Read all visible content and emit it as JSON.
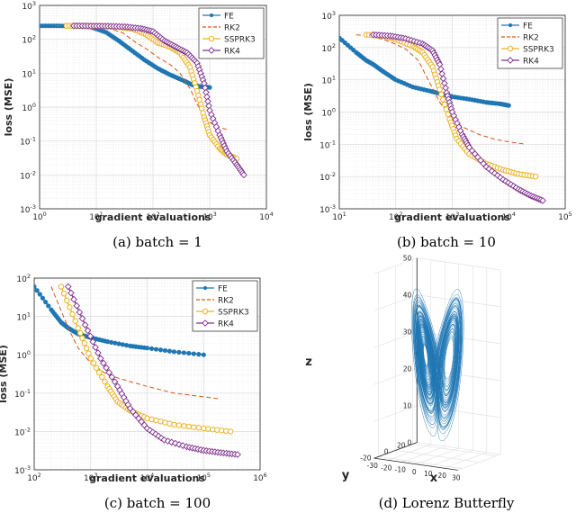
{
  "captions": [
    "(a) batch = 1",
    "(b) batch = 10",
    "(c) batch = 100",
    "(d) Lorenz Butterfly"
  ],
  "colors": {
    "FE": "#1f77b4",
    "RK2": "#d95319",
    "SSPRK3": "#edb120",
    "RK4": "#7e2f8e",
    "lorenz": "#1f77b4"
  },
  "chart_data": [
    {
      "type": "line",
      "title": "",
      "xlabel": "gradient evaluations",
      "ylabel": "loss (MSE)",
      "xscale": "log",
      "yscale": "log",
      "xlim": [
        1,
        10000
      ],
      "ylim": [
        0.001,
        1000
      ],
      "xticks": [
        {
          "v": 1,
          "e": "0"
        },
        {
          "v": 10,
          "e": "1"
        },
        {
          "v": 100,
          "e": "2"
        },
        {
          "v": 1000,
          "e": "3"
        },
        {
          "v": 10000,
          "e": "4"
        }
      ],
      "yticks": [
        {
          "v": 0.001,
          "e": "-3"
        },
        {
          "v": 0.01,
          "e": "-2"
        },
        {
          "v": 0.1,
          "e": "-1"
        },
        {
          "v": 1,
          "e": "0"
        },
        {
          "v": 10,
          "e": "1"
        },
        {
          "v": 100,
          "e": "2"
        },
        {
          "v": 1000,
          "e": "3"
        }
      ],
      "legend": "top-right",
      "series": [
        {
          "name": "FE",
          "marker": "dot",
          "x": [
            1,
            2,
            4,
            8,
            15,
            25,
            40,
            70,
            120,
            200,
            350,
            500,
            700,
            1000
          ],
          "y": [
            250,
            250,
            245,
            230,
            160,
            90,
            50,
            25,
            14,
            9,
            6,
            4.5,
            4,
            3.8
          ]
        },
        {
          "name": "RK2",
          "marker": "none",
          "x": [
            2,
            4,
            8,
            16,
            30,
            50,
            80,
            120,
            200,
            300,
            450,
            600,
            800,
            1000,
            1500,
            2000
          ],
          "y": [
            250,
            245,
            240,
            220,
            150,
            80,
            50,
            30,
            18,
            10,
            3.5,
            1.2,
            0.6,
            0.35,
            0.25,
            0.22
          ]
        },
        {
          "name": "SSPRK3",
          "marker": "circle",
          "x": [
            3,
            6,
            12,
            24,
            45,
            75,
            120,
            200,
            300,
            450,
            600,
            800,
            1000,
            1500,
            2000,
            3000
          ],
          "y": [
            250,
            248,
            245,
            230,
            200,
            140,
            80,
            60,
            40,
            15,
            3,
            0.5,
            0.15,
            0.06,
            0.04,
            0.03
          ]
        },
        {
          "name": "RK4",
          "marker": "diamond",
          "x": [
            4,
            8,
            16,
            32,
            60,
            100,
            160,
            250,
            400,
            600,
            800,
            1000,
            1500,
            2000,
            3000,
            4000
          ],
          "y": [
            250,
            248,
            245,
            235,
            210,
            170,
            90,
            60,
            40,
            20,
            5,
            0.8,
            0.15,
            0.05,
            0.02,
            0.01
          ]
        }
      ]
    },
    {
      "type": "line",
      "title": "",
      "xlabel": "gradient evaluations",
      "ylabel": "loss (MSE)",
      "xscale": "log",
      "yscale": "log",
      "xlim": [
        10,
        100000
      ],
      "ylim": [
        0.001,
        1000
      ],
      "xticks": [
        {
          "v": 10,
          "e": "1"
        },
        {
          "v": 100,
          "e": "2"
        },
        {
          "v": 1000,
          "e": "3"
        },
        {
          "v": 10000,
          "e": "4"
        },
        {
          "v": 100000,
          "e": "5"
        }
      ],
      "yticks": [
        {
          "v": 0.001,
          "e": "-3"
        },
        {
          "v": 0.01,
          "e": "-2"
        },
        {
          "v": 0.1,
          "e": "-1"
        },
        {
          "v": 1,
          "e": "0"
        },
        {
          "v": 10,
          "e": "1"
        },
        {
          "v": 100,
          "e": "2"
        },
        {
          "v": 1000,
          "e": "3"
        }
      ],
      "legend": "top-right",
      "series": [
        {
          "name": "FE",
          "marker": "dot",
          "x": [
            10,
            20,
            30,
            40,
            60,
            100,
            200,
            400,
            700,
            1000,
            2000,
            4000,
            7000,
            10000
          ],
          "y": [
            200,
            70,
            40,
            30,
            18,
            10,
            6,
            4.5,
            3.5,
            3,
            2.5,
            2,
            1.8,
            1.6
          ]
        },
        {
          "name": "RK2",
          "marker": "none",
          "x": [
            20,
            40,
            80,
            150,
            250,
            400,
            600,
            1000,
            1500,
            3000,
            6000,
            10000,
            20000
          ],
          "y": [
            250,
            220,
            150,
            90,
            40,
            8,
            2,
            0.6,
            0.35,
            0.2,
            0.14,
            0.12,
            0.1
          ]
        },
        {
          "name": "SSPRK3",
          "marker": "circle",
          "x": [
            30,
            60,
            100,
            200,
            300,
            450,
            600,
            900,
            1200,
            2000,
            4000,
            8000,
            15000,
            30000
          ],
          "y": [
            250,
            230,
            180,
            110,
            70,
            25,
            5,
            0.6,
            0.15,
            0.05,
            0.025,
            0.016,
            0.012,
            0.01
          ]
        },
        {
          "name": "RK4",
          "marker": "diamond",
          "x": [
            40,
            80,
            150,
            300,
            450,
            600,
            800,
            1000,
            1500,
            2000,
            4000,
            8000,
            15000,
            25000,
            40000
          ],
          "y": [
            250,
            230,
            190,
            130,
            80,
            30,
            4,
            1,
            0.2,
            0.08,
            0.02,
            0.008,
            0.004,
            0.0025,
            0.0018
          ]
        }
      ]
    },
    {
      "type": "line",
      "title": "",
      "xlabel": "gradient evaluations",
      "ylabel": "loss (MSE)",
      "xscale": "log",
      "yscale": "log",
      "xlim": [
        100,
        1000000
      ],
      "ylim": [
        0.001,
        100
      ],
      "xticks": [
        {
          "v": 100,
          "e": "2"
        },
        {
          "v": 1000,
          "e": "3"
        },
        {
          "v": 10000,
          "e": "4"
        },
        {
          "v": 100000,
          "e": "5"
        },
        {
          "v": 1000000,
          "e": "6"
        }
      ],
      "yticks": [
        {
          "v": 0.001,
          "e": "-3"
        },
        {
          "v": 0.01,
          "e": "-2"
        },
        {
          "v": 0.1,
          "e": "-1"
        },
        {
          "v": 1,
          "e": "0"
        },
        {
          "v": 10,
          "e": "1"
        },
        {
          "v": 100,
          "e": "2"
        }
      ],
      "legend": "top-right",
      "series": [
        {
          "name": "FE",
          "marker": "dot",
          "x": [
            100,
            200,
            300,
            400,
            600,
            1000,
            2000,
            5000,
            10000,
            30000,
            100000
          ],
          "y": [
            60,
            15,
            7,
            5,
            3.5,
            2.8,
            2.2,
            1.7,
            1.5,
            1.2,
            1
          ]
        },
        {
          "name": "RK2",
          "marker": "none",
          "x": [
            200,
            400,
            600,
            1000,
            2000,
            5000,
            10000,
            30000,
            100000,
            200000
          ],
          "y": [
            60,
            5,
            1.5,
            0.6,
            0.3,
            0.2,
            0.15,
            0.1,
            0.08,
            0.07
          ]
        },
        {
          "name": "SSPRK3",
          "marker": "circle",
          "x": [
            300,
            600,
            1000,
            2000,
            3000,
            5000,
            10000,
            30000,
            100000,
            300000
          ],
          "y": [
            60,
            5,
            0.8,
            0.15,
            0.06,
            0.035,
            0.022,
            0.015,
            0.012,
            0.01
          ]
        },
        {
          "name": "RK4",
          "marker": "diamond",
          "x": [
            400,
            800,
            1500,
            3000,
            5000,
            10000,
            20000,
            50000,
            100000,
            200000,
            400000
          ],
          "y": [
            60,
            6,
            0.8,
            0.15,
            0.04,
            0.012,
            0.006,
            0.004,
            0.0032,
            0.0028,
            0.0025
          ]
        }
      ]
    },
    {
      "type": "3d-line",
      "title": "",
      "xlabel": "x",
      "ylabel": "y",
      "zlabel": "z",
      "x_ticks": [
        "-30",
        "-20",
        "-10",
        "0",
        "10",
        "20",
        "30"
      ],
      "y_ticks": [
        "-20",
        "0",
        "20"
      ],
      "z_ticks": [
        "0",
        "10",
        "20",
        "30",
        "40",
        "50"
      ],
      "zlim": [
        0,
        50
      ]
    }
  ]
}
